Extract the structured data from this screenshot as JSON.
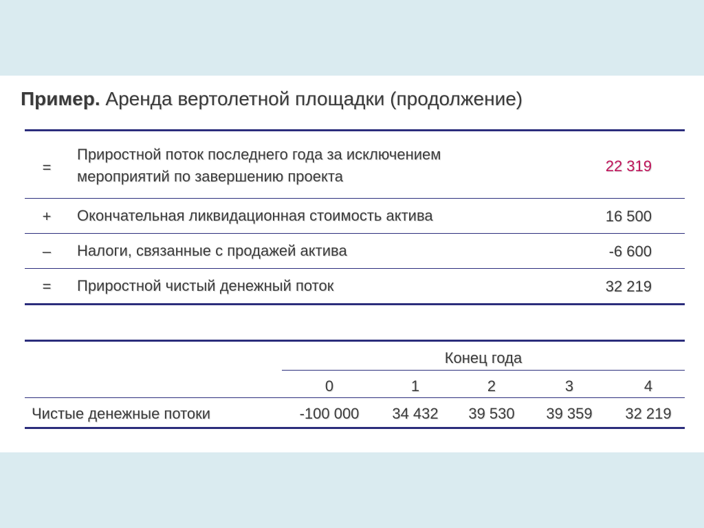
{
  "slide": {
    "title_lead": "Пример.",
    "title_rest": " Аренда вертолетной площадки (продолжение)"
  },
  "summary_table": {
    "rows": [
      {
        "symbol": "=",
        "line1": "Приростной поток последнего года за исключением",
        "line2": "мероприятий по завершению проекта",
        "value": "22 319"
      },
      {
        "symbol": "+",
        "line1": "Окончательная ликвидационная стоимость актива",
        "value": "16 500"
      },
      {
        "symbol": "–",
        "line1": "Налоги, связанные с продажей актива",
        "value": "-6 600"
      },
      {
        "symbol": "=",
        "line1": "Приростной чистый денежный поток",
        "value": "32 219"
      }
    ],
    "highlight_color": "#c0135a"
  },
  "cashflow_table": {
    "group_header": "Конец года",
    "years": [
      "0",
      "1",
      "2",
      "3",
      "4"
    ],
    "row_label": "Чистые денежные потоки",
    "values": [
      "-100 000",
      "34 432",
      "39 530",
      "39 359",
      "32 219"
    ]
  },
  "colors": {
    "band": "#daebf0",
    "rule": "#2b2d7c",
    "text": "#3c3c3c"
  }
}
